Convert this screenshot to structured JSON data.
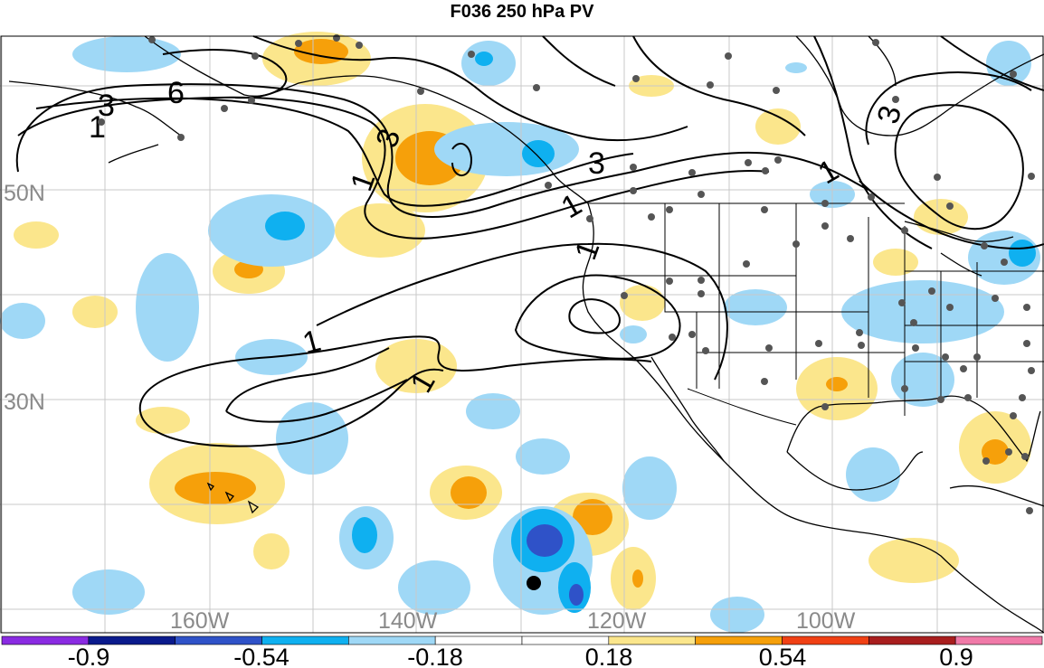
{
  "title": "F036 250 hPa PV",
  "map": {
    "lat_labels": [
      "50N",
      "30N"
    ],
    "lon_labels": [
      "160W",
      "140W",
      "120W",
      "100W"
    ],
    "contour_labels": [
      "6",
      "3",
      "1",
      "3",
      "1",
      "3",
      "1",
      "1",
      "1",
      "1",
      "3",
      "1"
    ]
  },
  "colorbar": {
    "colors": [
      "#8a2be2",
      "#0a1a8c",
      "#2f52c8",
      "#0fb0f0",
      "#9fd8f6",
      "#ffffff",
      "#ffffff",
      "#fbe68c",
      "#f6a00a",
      "#f04014",
      "#a81e1e",
      "#f07aa8"
    ],
    "tick_labels": [
      "-0.9",
      "-0.54",
      "-0.18",
      "0.18",
      "0.54",
      "0.9"
    ]
  },
  "colors": {
    "pos_light": "#fbe68c",
    "pos_mid": "#f6a00a",
    "neg_light": "#9fd8f6",
    "neg_mid": "#0fb0f0",
    "neg_dark": "#2f52c8",
    "grid": "#c8c8c8",
    "coast": "#000000",
    "station": "#555555"
  }
}
